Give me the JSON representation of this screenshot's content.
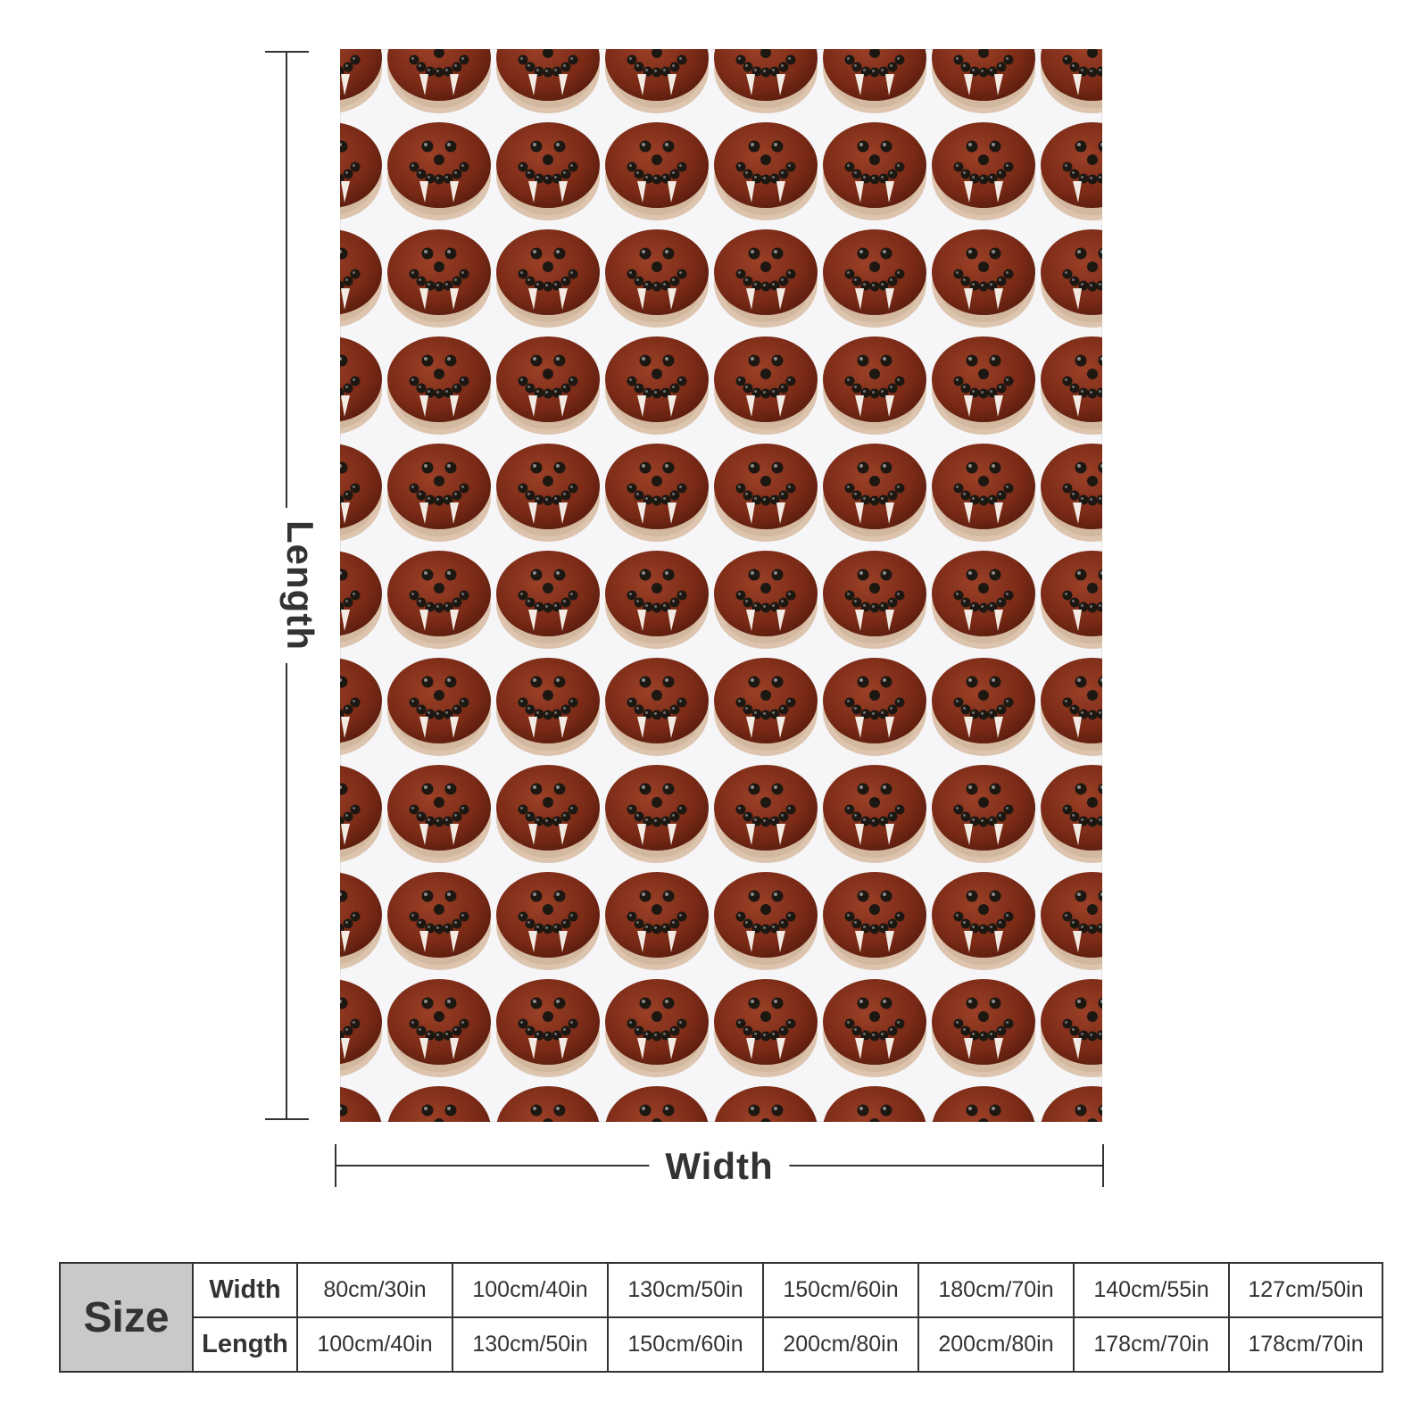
{
  "dimensions": {
    "length_label": "Length",
    "width_label": "Width"
  },
  "pattern": {
    "motif_icon": "brown-frosted-bun-face-icon",
    "colors": {
      "background": "#f6f6f8",
      "frosting": "#7a2a16",
      "bun": "#dcc4ae",
      "dots": "#1d1712",
      "teeth": "#f3ebe3"
    }
  },
  "size_table": {
    "header": "Size",
    "rows": [
      {
        "label": "Width",
        "values": [
          "80cm/30in",
          "100cm/40in",
          "130cm/50in",
          "150cm/60in",
          "180cm/70in",
          "140cm/55in",
          "127cm/50in"
        ]
      },
      {
        "label": "Length",
        "values": [
          "100cm/40in",
          "130cm/50in",
          "150cm/60in",
          "200cm/80in",
          "200cm/80in",
          "178cm/70in",
          "178cm/70in"
        ]
      }
    ]
  }
}
